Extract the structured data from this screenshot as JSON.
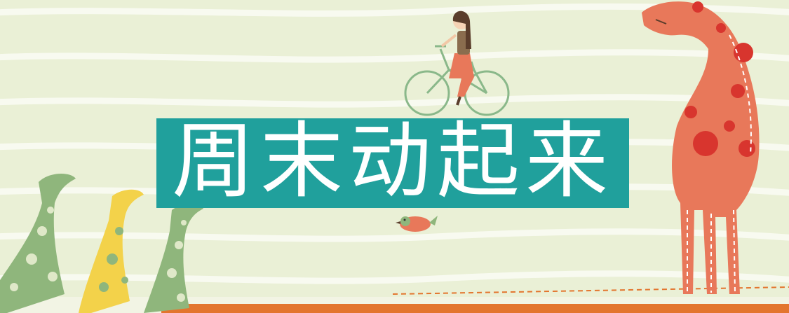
{
  "banner": {
    "title": "周末动起来"
  },
  "colors": {
    "background": "#eaf0d6",
    "stripe": "#f6f8ec",
    "title_block": "#20a09c",
    "title_text": "#ffffff",
    "giraffe_large": "#e8785a",
    "giraffe_spots": "#d8352e",
    "giraffe_green": "#8fb67c",
    "giraffe_yellow": "#f3d24a",
    "ground_orange": "#e3752e"
  },
  "icons": [
    "cyclist-girl-icon",
    "bird-icon",
    "large-giraffe-icon",
    "small-giraffe-icon"
  ]
}
